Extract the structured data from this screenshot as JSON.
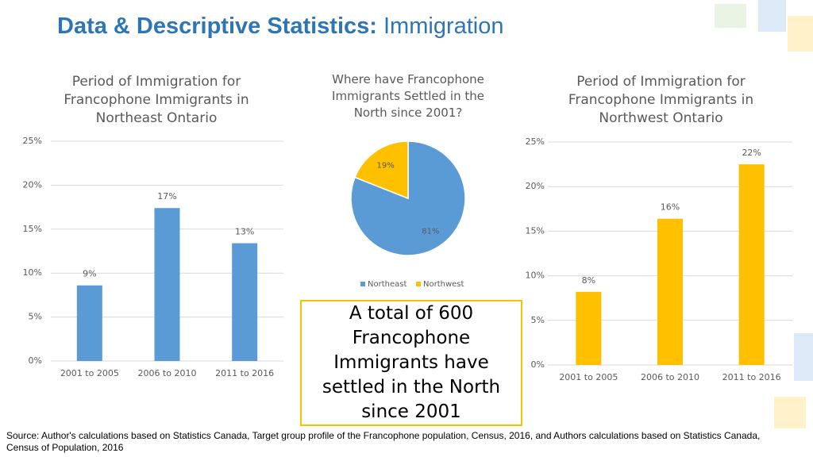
{
  "header": {
    "title_bold": "Data & Descriptive Statistics:",
    "title_light": "Immigration"
  },
  "callout": "A total of 600 Francophone Immigrants have settled in the North since 2001",
  "source": "Source: Author's calculations based on Statistics Canada, Target group profile of the Francophone population, Census, 2016, and Authors calculations based on Statistics Canada, Census of Population, 2016",
  "chart_data": [
    {
      "type": "bar",
      "title": "Period of Immigration for Francophone Immigrants in Northeast Ontario",
      "categories": [
        "2001 to 2005",
        "2006 to 2010",
        "2011 to 2016"
      ],
      "values": [
        8.6,
        17.4,
        13.4
      ],
      "value_labels": [
        "9%",
        "17%",
        "13%"
      ],
      "color": "#5b9bd5",
      "ylim": [
        0,
        25
      ],
      "yticks": [
        {
          "value": 0,
          "label": "0%"
        },
        {
          "value": 5,
          "label": "5%"
        },
        {
          "value": 10,
          "label": "10%"
        },
        {
          "value": 15,
          "label": "15%"
        },
        {
          "value": 20,
          "label": "20%"
        },
        {
          "value": 25,
          "label": "25%"
        }
      ],
      "grid": true
    },
    {
      "type": "pie",
      "title": "Where have Francophone Immigrants Settled in the North since 2001?",
      "categories": [
        "Northeast",
        "Northwest"
      ],
      "values": [
        81,
        19
      ],
      "value_labels": [
        "81%",
        "19%"
      ],
      "colors": [
        "#5b9bd5",
        "#ffc000"
      ],
      "legend": "bottom"
    },
    {
      "type": "bar",
      "title": "Period of Immigration for Francophone Immigrants in Northwest Ontario",
      "categories": [
        "2001 to 2005",
        "2006 to 2010",
        "2011 to 2016"
      ],
      "values": [
        8.2,
        16.4,
        22.5
      ],
      "value_labels": [
        "8%",
        "16%",
        "22%"
      ],
      "color": "#ffc000",
      "ylim": [
        0,
        25
      ],
      "yticks": [
        {
          "value": 0,
          "label": "0%"
        },
        {
          "value": 5,
          "label": "5%"
        },
        {
          "value": 10,
          "label": "10%"
        },
        {
          "value": 15,
          "label": "15%"
        },
        {
          "value": 20,
          "label": "20%"
        },
        {
          "value": 25,
          "label": "25%"
        }
      ],
      "grid": true
    }
  ]
}
